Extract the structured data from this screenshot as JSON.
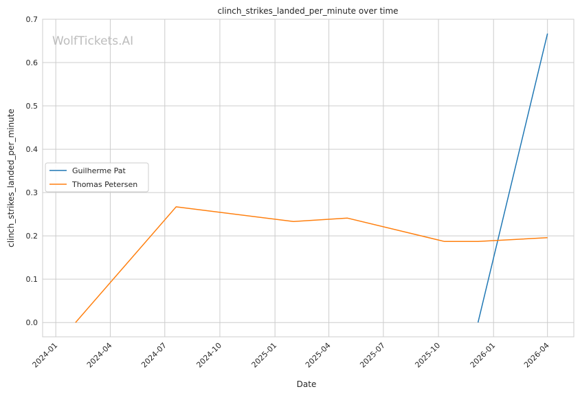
{
  "chart_data": {
    "type": "line",
    "title": "clinch_strikes_landed_per_minute over time",
    "xlabel": "Date",
    "ylabel": "clinch_strikes_landed_per_minute",
    "watermark": "WolfTickets.AI",
    "x_ticks": [
      "2024-01",
      "2024-04",
      "2024-07",
      "2024-10",
      "2025-01",
      "2025-04",
      "2025-07",
      "2025-10",
      "2026-01",
      "2026-04"
    ],
    "y_ticks": [
      "0.0",
      "0.1",
      "0.2",
      "0.3",
      "0.4",
      "0.5",
      "0.6",
      "0.7"
    ],
    "xlim": [
      "2023-12-10",
      "2026-05-15"
    ],
    "ylim": [
      -0.033,
      0.7
    ],
    "grid": true,
    "legend_position": "center-left",
    "series": [
      {
        "name": "Guilherme Pat",
        "color": "#1f77b4",
        "points": [
          {
            "x": "2025-12-06",
            "y": 0.0
          },
          {
            "x": "2026-04-01",
            "y": 0.667
          }
        ]
      },
      {
        "name": "Thomas Petersen",
        "color": "#ff7f0e",
        "points": [
          {
            "x": "2024-02-03",
            "y": 0.0
          },
          {
            "x": "2024-07-20",
            "y": 0.267
          },
          {
            "x": "2025-02-01",
            "y": 0.233
          },
          {
            "x": "2025-05-02",
            "y": 0.241
          },
          {
            "x": "2025-10-11",
            "y": 0.187
          },
          {
            "x": "2025-12-06",
            "y": 0.187
          },
          {
            "x": "2026-04-01",
            "y": 0.196
          }
        ]
      }
    ]
  }
}
